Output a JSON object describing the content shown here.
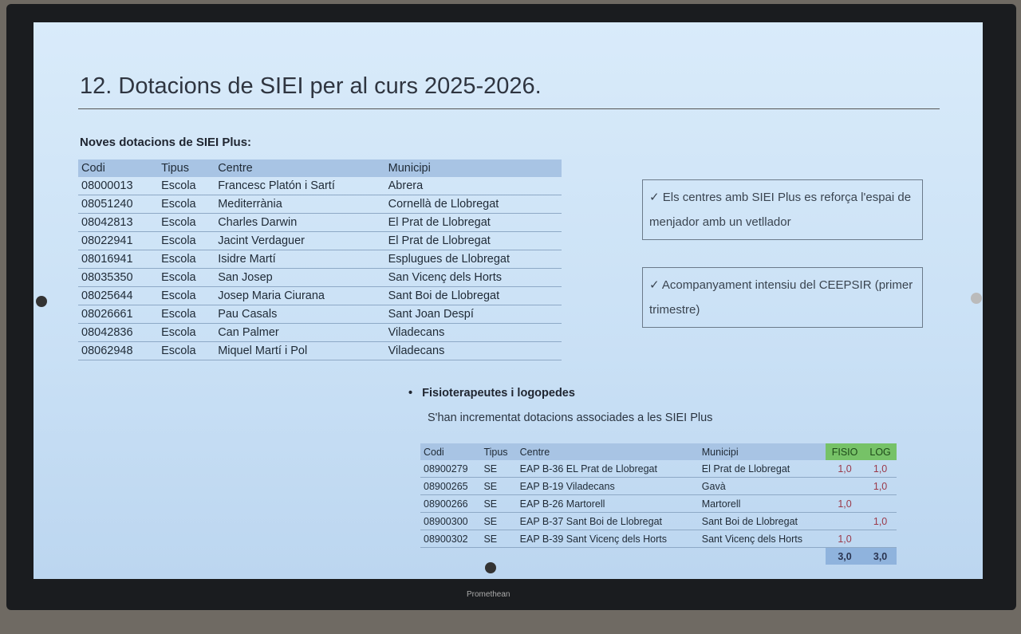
{
  "slide": {
    "title": "12. Dotacions de SIEI per al curs 2025-2026.",
    "subtitle": "Noves dotacions de SIEI Plus:",
    "table1": {
      "headers": [
        "Codi",
        "Tipus",
        "Centre",
        "Municipi"
      ],
      "rows": [
        [
          "08000013",
          "Escola",
          "Francesc Platón i Sartí",
          "Abrera"
        ],
        [
          "08051240",
          "Escola",
          "Mediterrània",
          "Cornellà de Llobregat"
        ],
        [
          "08042813",
          "Escola",
          "Charles Darwin",
          "El Prat de Llobregat"
        ],
        [
          "08022941",
          "Escola",
          "Jacint Verdaguer",
          "El Prat de Llobregat"
        ],
        [
          "08016941",
          "Escola",
          "Isidre Martí",
          "Esplugues de Llobregat"
        ],
        [
          "08035350",
          "Escola",
          "San Josep",
          "San Vicenç dels Horts"
        ],
        [
          "08025644",
          "Escola",
          "Josep Maria Ciurana",
          "Sant Boi de Llobregat"
        ],
        [
          "08026661",
          "Escola",
          "Pau Casals",
          "Sant Joan Despí"
        ],
        [
          "08042836",
          "Escola",
          "Can Palmer",
          "Viladecans"
        ],
        [
          "08062948",
          "Escola",
          "Miquel Martí i Pol",
          "Viladecans"
        ]
      ]
    },
    "box1": "✓ Els centres amb SIEI Plus es reforça l'espai de menjador amb un vetllador",
    "box2": "✓ Acompanyament intensiu del CEEPSIR (primer trimestre)",
    "bullet": "Fisioterapeutes i logopedes",
    "note": "S'han incrementat dotacions associades a les SIEI Plus",
    "table2": {
      "headers": [
        "Codi",
        "Tipus",
        "Centre",
        "Municipi",
        "FISIO",
        "LOG"
      ],
      "rows": [
        [
          "08900279",
          "SE",
          "EAP B-36 EL Prat de Llobregat",
          "El Prat de Llobregat",
          "1,0",
          "1,0"
        ],
        [
          "08900265",
          "SE",
          "EAP B-19 Viladecans",
          "Gavà",
          "",
          "1,0"
        ],
        [
          "08900266",
          "SE",
          "EAP B-26 Martorell",
          "Martorell",
          "1,0",
          ""
        ],
        [
          "08900300",
          "SE",
          "EAP B-37 Sant Boi de Llobregat",
          "Sant Boi de Llobregat",
          "",
          "1,0"
        ],
        [
          "08900302",
          "SE",
          "EAP B-39 Sant Vicenç dels Horts",
          "Sant Vicenç dels Horts",
          "1,0",
          ""
        ]
      ],
      "totals": [
        "3,0",
        "3,0"
      ],
      "header_accent": "#76c267"
    }
  },
  "monitor": {
    "brand": "Promethean"
  }
}
